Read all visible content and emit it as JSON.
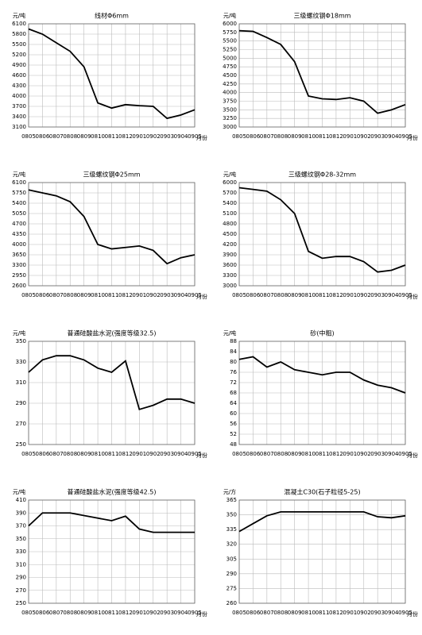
{
  "chart_data": [
    {
      "type": "line",
      "title": "线材Φ6mm",
      "y_label": "元/吨",
      "x_label": "月份",
      "categories": [
        "0805",
        "0806",
        "0807",
        "0808",
        "0809",
        "0810",
        "0811",
        "0812",
        "0901",
        "0902",
        "0903",
        "0904",
        "0905"
      ],
      "series": [
        {
          "name": "线材Φ6mm",
          "color": "#000000",
          "values": [
            5950,
            5800,
            5550,
            5300,
            4850,
            3800,
            3650,
            3750,
            3720,
            3700,
            3350,
            3450,
            3600
          ]
        }
      ],
      "ylim": [
        3100,
        6100
      ],
      "yticks": [
        3100,
        3400,
        3700,
        4000,
        4300,
        4600,
        4900,
        5200,
        5500,
        5800,
        6100
      ],
      "grid": true
    },
    {
      "type": "line",
      "title": "三级螺纹钢Φ18mm",
      "y_label": "元/吨",
      "x_label": "月份",
      "categories": [
        "0805",
        "0806",
        "0807",
        "0808",
        "0809",
        "0810",
        "0811",
        "0812",
        "0901",
        "0902",
        "0903",
        "0904",
        "0905"
      ],
      "series": [
        {
          "name": "三级螺纹钢Φ18mm",
          "color": "#000000",
          "values": [
            5800,
            5780,
            5600,
            5400,
            4900,
            3900,
            3820,
            3800,
            3850,
            3750,
            3400,
            3500,
            3650
          ]
        }
      ],
      "ylim": [
        3000,
        6000
      ],
      "yticks": [
        3000,
        3250,
        3500,
        3750,
        4000,
        4250,
        4500,
        4750,
        5000,
        5250,
        5500,
        5750,
        6000
      ],
      "grid": true
    },
    {
      "type": "line",
      "title": "三级螺纹钢Φ25mm",
      "y_label": "元/吨",
      "x_label": "月份",
      "categories": [
        "0805",
        "0806",
        "0807",
        "0808",
        "0809",
        "0810",
        "0811",
        "0812",
        "0901",
        "0902",
        "0903",
        "0904",
        "0905"
      ],
      "series": [
        {
          "name": "三级螺纹钢Φ25mm",
          "color": "#000000",
          "values": [
            5850,
            5750,
            5650,
            5450,
            4950,
            4000,
            3850,
            3900,
            3950,
            3800,
            3350,
            3550,
            3650
          ]
        }
      ],
      "ylim": [
        2600,
        6100
      ],
      "yticks": [
        2600,
        2950,
        3300,
        3650,
        4000,
        4350,
        4700,
        5050,
        5400,
        5750,
        6100
      ],
      "grid": true
    },
    {
      "type": "line",
      "title": "三级螺纹钢Φ28-32mm",
      "y_label": "元/吨",
      "x_label": "月份",
      "categories": [
        "0805",
        "0806",
        "0807",
        "0808",
        "0809",
        "0810",
        "0811",
        "0812",
        "0901",
        "0902",
        "0903",
        "0904",
        "0905"
      ],
      "series": [
        {
          "name": "三级螺纹钢Φ28-32mm",
          "color": "#000000",
          "values": [
            5850,
            5800,
            5750,
            5500,
            5100,
            4000,
            3800,
            3850,
            3850,
            3700,
            3400,
            3450,
            3600
          ]
        }
      ],
      "ylim": [
        3000,
        6000
      ],
      "yticks": [
        3000,
        3300,
        3600,
        3900,
        4200,
        4500,
        4800,
        5100,
        5400,
        5700,
        6000
      ],
      "grid": true
    },
    {
      "type": "line",
      "title": "普通硅酸盐水泥(强度等级32.5)",
      "y_label": "元/吨",
      "x_label": "月份",
      "categories": [
        "0805",
        "0806",
        "0807",
        "0808",
        "0809",
        "0810",
        "0811",
        "0812",
        "0901",
        "0902",
        "0903",
        "0904",
        "0905"
      ],
      "series": [
        {
          "name": "普通硅酸盐水泥(强度等级32.5)",
          "color": "#000000",
          "values": [
            320,
            332,
            336,
            336,
            332,
            324,
            320,
            331,
            284,
            288,
            294,
            294,
            290
          ]
        }
      ],
      "ylim": [
        250,
        350
      ],
      "yticks": [
        250,
        270,
        290,
        310,
        330,
        350
      ],
      "grid": true
    },
    {
      "type": "line",
      "title": "砂(中粗)",
      "y_label": "元/吨",
      "x_label": "月份",
      "categories": [
        "0805",
        "0806",
        "0807",
        "0808",
        "0809",
        "0810",
        "0811",
        "0812",
        "0901",
        "0902",
        "0903",
        "0904",
        "0905"
      ],
      "series": [
        {
          "name": "砂(中粗)",
          "color": "#000000",
          "values": [
            81,
            82,
            78,
            80,
            77,
            76,
            75,
            76,
            76,
            73,
            71,
            70,
            68
          ]
        }
      ],
      "ylim": [
        48,
        88
      ],
      "yticks": [
        48,
        52,
        56,
        60,
        64,
        68,
        72,
        76,
        80,
        84,
        88
      ],
      "grid": true
    },
    {
      "type": "line",
      "title": "普通硅酸盐水泥(强度等级42.5)",
      "y_label": "元/吨",
      "x_label": "月份",
      "categories": [
        "0805",
        "0806",
        "0807",
        "0808",
        "0809",
        "0810",
        "0811",
        "0812",
        "0901",
        "0902",
        "0903",
        "0904",
        "0905"
      ],
      "series": [
        {
          "name": "普通硅酸盐水泥(强度等级42.5)",
          "color": "#000000",
          "values": [
            370,
            390,
            390,
            390,
            386,
            382,
            378,
            385,
            365,
            360,
            360,
            360,
            360
          ]
        }
      ],
      "ylim": [
        250,
        410
      ],
      "yticks": [
        250,
        270,
        290,
        310,
        330,
        350,
        370,
        390,
        410
      ],
      "grid": true
    },
    {
      "type": "line",
      "title": "混凝土C30(石子粒径5-25)",
      "y_label": "元/方",
      "x_label": "月份",
      "categories": [
        "0805",
        "0806",
        "0807",
        "0808",
        "0809",
        "0810",
        "0811",
        "0812",
        "0901",
        "0902",
        "0903",
        "0904",
        "0905"
      ],
      "series": [
        {
          "name": "混凝土C30(石子粒径5-25)",
          "color": "#000000",
          "values": [
            333,
            341,
            349,
            353,
            353,
            353,
            353,
            353,
            353,
            353,
            348,
            347,
            349
          ]
        }
      ],
      "ylim": [
        260,
        365
      ],
      "yticks": [
        260,
        275,
        290,
        305,
        320,
        335,
        350,
        365
      ],
      "grid": true
    }
  ]
}
